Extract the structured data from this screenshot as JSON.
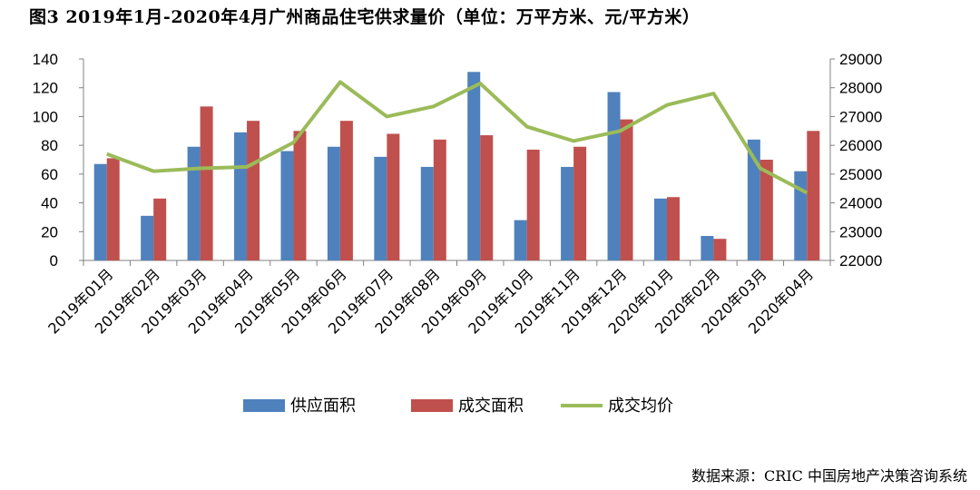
{
  "chart_data": {
    "type": "bar",
    "title": "图3 2019年1月-2020年4月广州商品住宅供求量价（单位：万平方米、元/平方米）",
    "categories": [
      "2019年01月",
      "2019年02月",
      "2019年03月",
      "2019年04月",
      "2019年05月",
      "2019年06月",
      "2019年07月",
      "2019年08月",
      "2019年09月",
      "2019年10月",
      "2019年11月",
      "2019年12月",
      "2020年01月",
      "2020年02月",
      "2020年03月",
      "2020年04月"
    ],
    "series": [
      {
        "name": "供应面积",
        "type": "bar",
        "axis": "left",
        "color": "#4f81bd",
        "values": [
          67,
          31,
          79,
          89,
          76,
          79,
          72,
          65,
          131,
          28,
          65,
          117,
          43,
          17,
          84,
          62
        ]
      },
      {
        "name": "成交面积",
        "type": "bar",
        "axis": "left",
        "color": "#c0504d",
        "values": [
          71,
          43,
          107,
          97,
          90,
          97,
          88,
          84,
          87,
          77,
          79,
          98,
          44,
          15,
          70,
          90
        ]
      },
      {
        "name": "成交均价",
        "type": "line",
        "axis": "right",
        "color": "#9bbb59",
        "values": [
          25700,
          25100,
          25200,
          25250,
          26100,
          28200,
          27000,
          27350,
          28150,
          26650,
          26150,
          26500,
          27400,
          27800,
          25200,
          24350
        ]
      }
    ],
    "y_left": {
      "min": 0,
      "max": 140,
      "ticks": [
        0,
        20,
        40,
        60,
        80,
        100,
        120,
        140
      ]
    },
    "y_right": {
      "min": 22000,
      "max": 29000,
      "ticks": [
        22000,
        23000,
        24000,
        25000,
        26000,
        27000,
        28000,
        29000
      ]
    },
    "grid": false,
    "legend_position": "bottom"
  },
  "source_note": "数据来源：CRIC 中国房地产决策咨询系统"
}
